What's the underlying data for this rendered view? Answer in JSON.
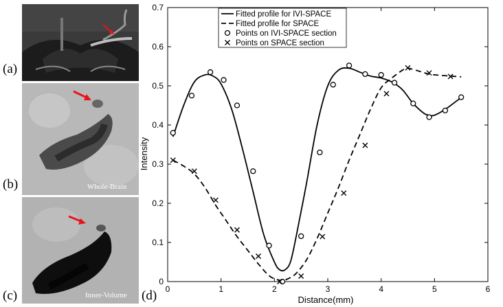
{
  "panels": {
    "a": {
      "label": "(a)"
    },
    "b": {
      "label": "(b)",
      "caption": "Whole-Brain"
    },
    "c": {
      "label": "(c)",
      "caption": "Inner-Volume"
    },
    "d": {
      "label": "(d)"
    }
  },
  "colors": {
    "arrow": "#e8141c",
    "ink": "#000000"
  },
  "chart_data": {
    "type": "line",
    "title": "",
    "xlabel": "Distance(mm)",
    "ylabel": "Intensity",
    "xlim": [
      0,
      6
    ],
    "ylim": [
      0,
      0.7
    ],
    "xticks": [
      "0",
      "1",
      "2",
      "3",
      "4",
      "5",
      "6"
    ],
    "yticks": [
      "0",
      "0.1",
      "0.2",
      "0.3",
      "0.4",
      "0.5",
      "0.6",
      "0.7"
    ],
    "legend_position": "top-center",
    "legend": [
      "Fitted profile for IVI-SPACE",
      "Fitted profile for SPACE",
      "Points on IVI-SPACE section",
      "Points on SPACE section"
    ],
    "series": [
      {
        "name": "Fitted profile for IVI-SPACE",
        "style": "solid",
        "x": [
          0.1,
          0.3,
          0.5,
          0.7,
          0.85,
          1.0,
          1.2,
          1.4,
          1.6,
          1.8,
          2.0,
          2.1,
          2.2,
          2.3,
          2.4,
          2.6,
          2.8,
          3.0,
          3.2,
          3.4,
          3.6,
          3.8,
          4.0,
          4.2,
          4.4,
          4.6,
          4.8,
          4.9,
          5.0,
          5.2,
          5.4,
          5.5
        ],
        "y": [
          0.37,
          0.45,
          0.51,
          0.528,
          0.525,
          0.505,
          0.44,
          0.34,
          0.23,
          0.12,
          0.05,
          0.03,
          0.03,
          0.05,
          0.11,
          0.25,
          0.4,
          0.5,
          0.54,
          0.545,
          0.535,
          0.525,
          0.52,
          0.51,
          0.49,
          0.455,
          0.43,
          0.425,
          0.425,
          0.44,
          0.46,
          0.47
        ]
      },
      {
        "name": "Fitted profile for SPACE",
        "style": "dashed",
        "x": [
          0.1,
          0.3,
          0.5,
          0.7,
          0.9,
          1.1,
          1.3,
          1.5,
          1.7,
          1.9,
          2.05,
          2.15,
          2.25,
          2.4,
          2.6,
          2.8,
          3.0,
          3.2,
          3.4,
          3.6,
          3.8,
          4.0,
          4.2,
          4.4,
          4.5,
          4.7,
          4.9,
          5.1,
          5.3,
          5.5
        ],
        "y": [
          0.31,
          0.295,
          0.275,
          0.24,
          0.195,
          0.155,
          0.115,
          0.08,
          0.045,
          0.015,
          0.005,
          0.003,
          0.007,
          0.02,
          0.055,
          0.11,
          0.175,
          0.24,
          0.31,
          0.375,
          0.44,
          0.495,
          0.52,
          0.54,
          0.545,
          0.538,
          0.53,
          0.527,
          0.525,
          0.523
        ]
      },
      {
        "name": "Points on IVI-SPACE section",
        "marker": "circle",
        "x": [
          0.1,
          0.45,
          0.8,
          1.05,
          1.3,
          1.6,
          1.9,
          2.15,
          2.5,
          2.85,
          3.1,
          3.4,
          3.7,
          4.0,
          4.25,
          4.6,
          4.9,
          5.2,
          5.5
        ],
        "y": [
          0.38,
          0.475,
          0.535,
          0.515,
          0.45,
          0.282,
          0.092,
          0.0,
          0.116,
          0.33,
          0.503,
          0.552,
          0.53,
          0.528,
          0.508,
          0.455,
          0.42,
          0.437,
          0.471
        ]
      },
      {
        "name": "Points on SPACE section",
        "marker": "x",
        "x": [
          0.1,
          0.5,
          0.9,
          1.3,
          1.7,
          2.1,
          2.5,
          2.9,
          3.3,
          3.7,
          4.1,
          4.5,
          4.9,
          5.3
        ],
        "y": [
          0.31,
          0.282,
          0.208,
          0.132,
          0.065,
          0.0,
          0.014,
          0.115,
          0.226,
          0.348,
          0.48,
          0.546,
          0.533,
          0.524
        ]
      }
    ]
  }
}
